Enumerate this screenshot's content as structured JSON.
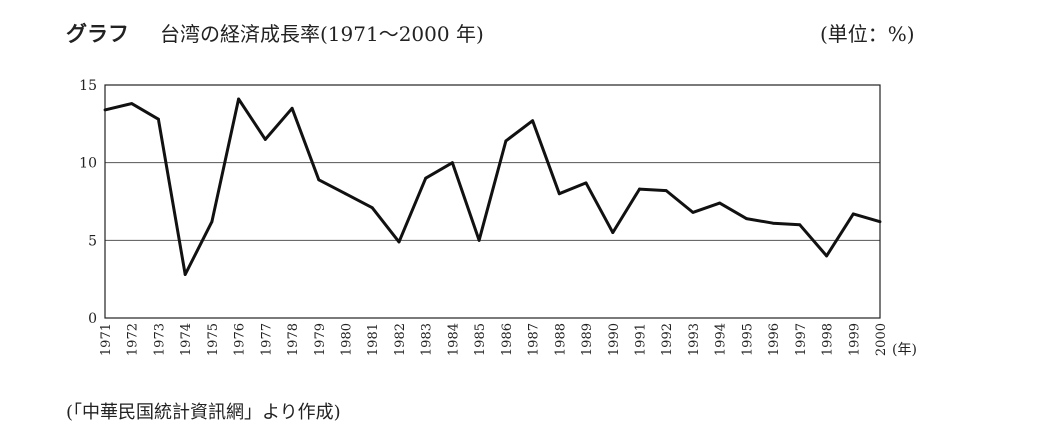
{
  "header": {
    "label": "グラフ",
    "title": "台湾の経済成長率(1971～2000 年)",
    "unit": "(単位：%)"
  },
  "footer": {
    "source": "(「中華民国統計資訊網」より作成)"
  },
  "chart_data": {
    "type": "line",
    "title": "台湾の経済成長率(1971～2000 年)",
    "xlabel": "(年)",
    "ylabel": "",
    "ylim": [
      0,
      15
    ],
    "yticks": [
      0,
      5,
      10,
      15
    ],
    "grid": true,
    "x": [
      "1971",
      "1972",
      "1973",
      "1974",
      "1975",
      "1976",
      "1977",
      "1978",
      "1979",
      "1980",
      "1981",
      "1982",
      "1983",
      "1984",
      "1985",
      "1986",
      "1987",
      "1988",
      "1989",
      "1990",
      "1991",
      "1992",
      "1993",
      "1994",
      "1995",
      "1996",
      "1997",
      "1998",
      "1999",
      "2000"
    ],
    "series": [
      {
        "values": [
          13.4,
          13.8,
          12.8,
          2.8,
          6.2,
          14.1,
          11.5,
          13.5,
          8.9,
          8.0,
          7.1,
          4.9,
          9.0,
          10.0,
          5.0,
          11.4,
          12.7,
          8.0,
          8.7,
          5.5,
          8.3,
          8.2,
          6.8,
          7.4,
          6.4,
          6.1,
          6.0,
          4.0,
          6.7,
          6.2
        ]
      }
    ]
  }
}
